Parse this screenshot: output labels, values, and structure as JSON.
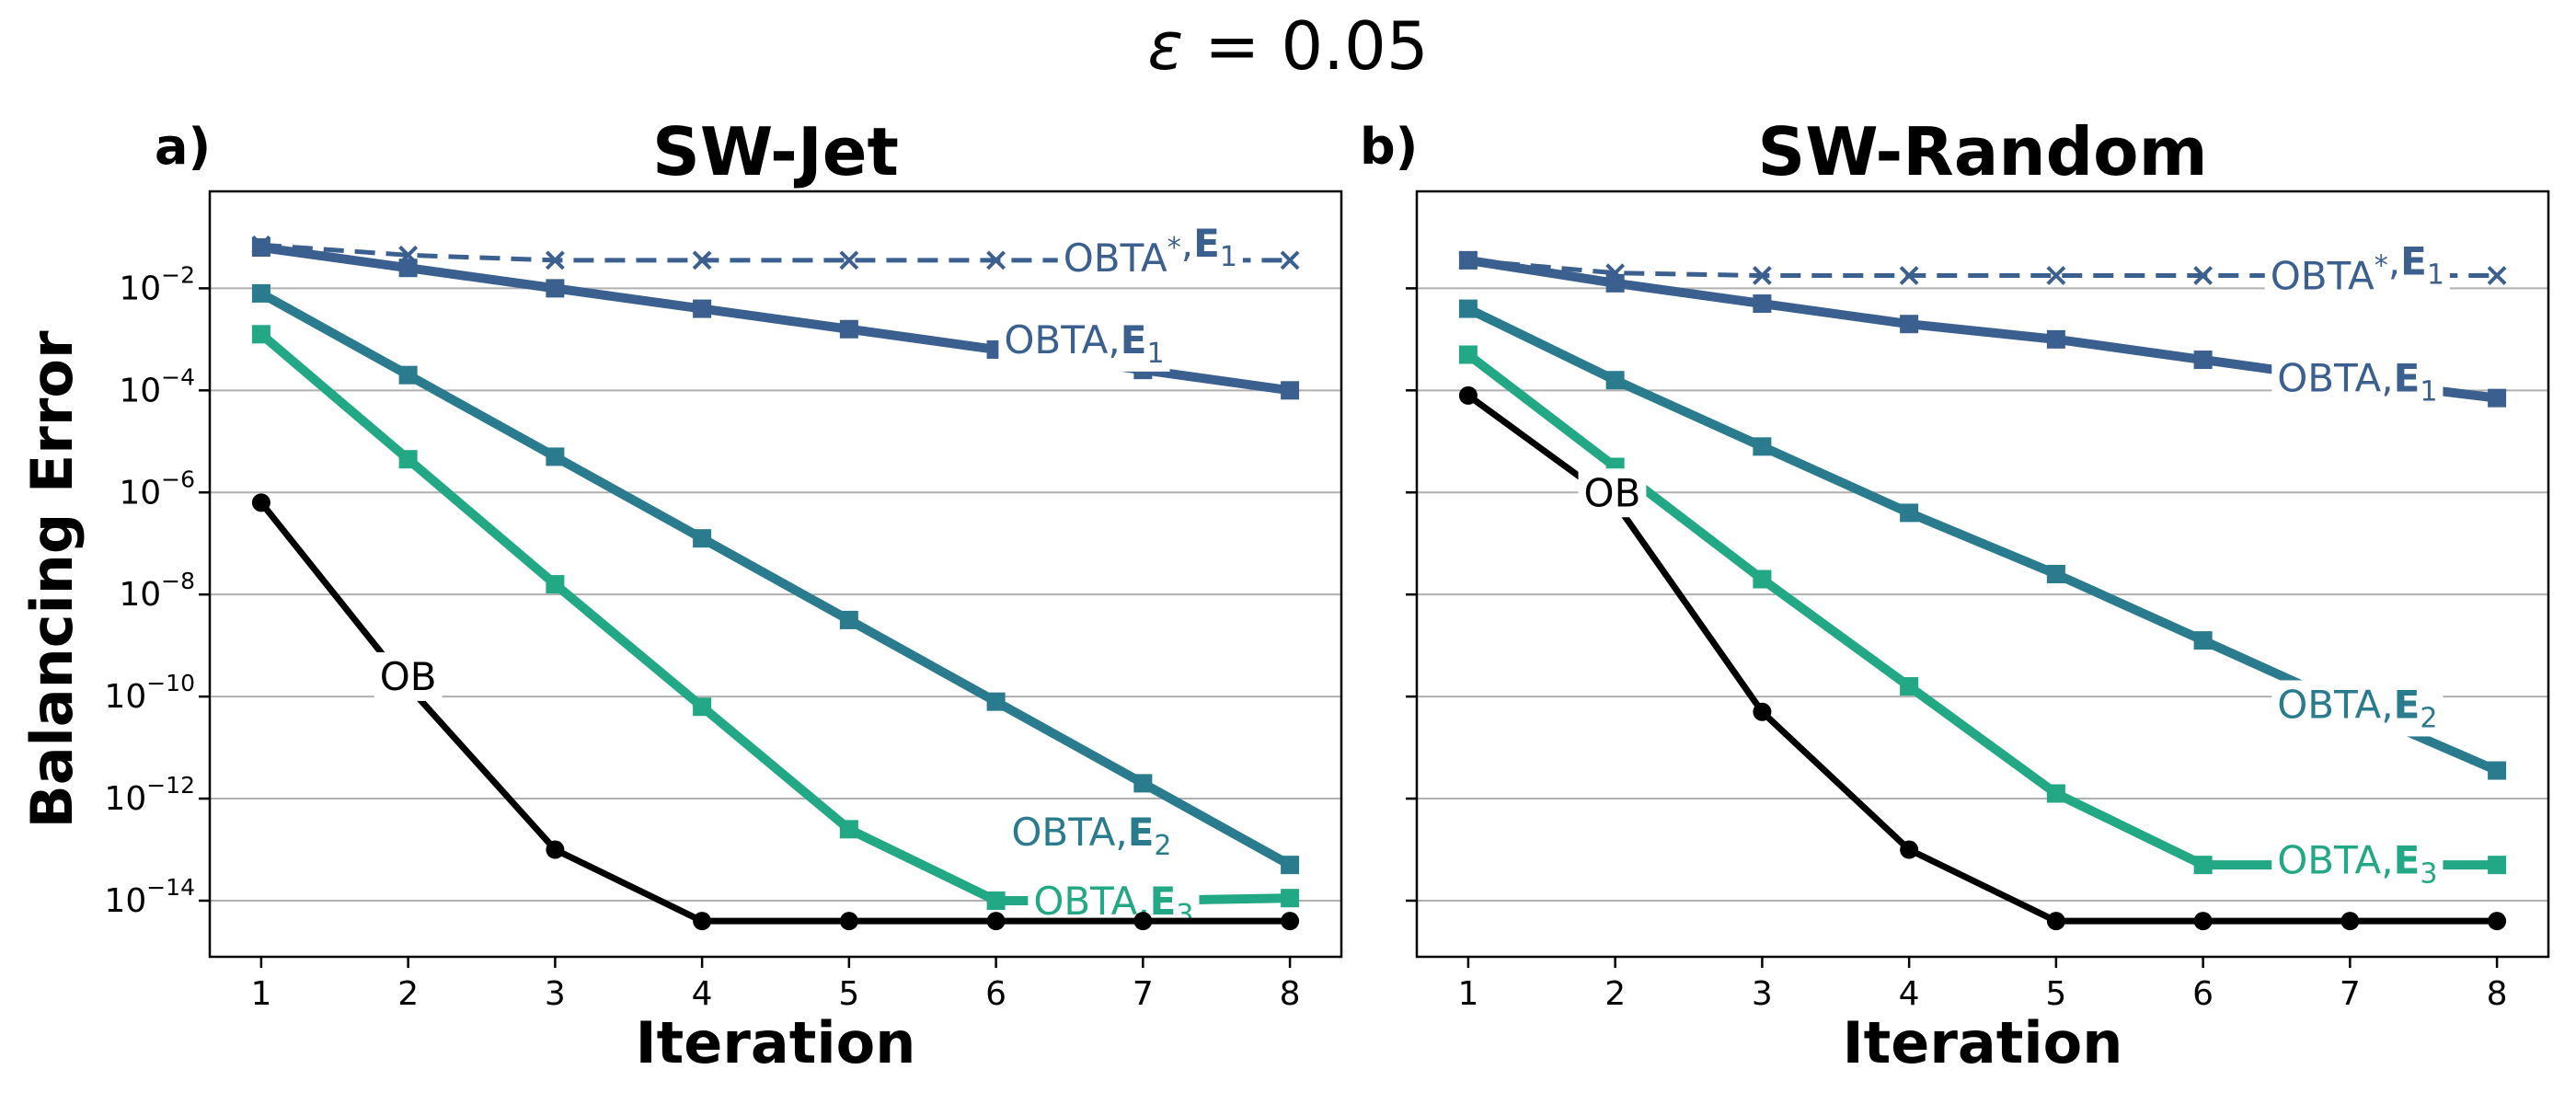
{
  "figure": {
    "title_symbol": "ε",
    "title_rest": " = 0.05"
  },
  "chart_data": [
    {
      "type": "line",
      "panel_label": "a)",
      "title": "SW-Jet",
      "xlabel": "Iteration",
      "ylabel": "Balancing Error",
      "yscale": "log",
      "xlim": [
        0.65,
        8.35
      ],
      "ylim_log10": [
        -15.1,
        -0.1
      ],
      "x_ticks": [
        1,
        2,
        3,
        4,
        5,
        6,
        7,
        8
      ],
      "y_ticks_log10": [
        -2,
        -4,
        -6,
        -8,
        -10,
        -12,
        -14
      ],
      "grid": "horizontal",
      "x": [
        1,
        2,
        3,
        4,
        5,
        6,
        7,
        8
      ],
      "series": [
        {
          "label_main": "OBTA",
          "label_sup": "*",
          "label_bold": "E",
          "label_sub": "1",
          "color": "#3b5f8f",
          "marker": "x",
          "linestyle": "dashed",
          "log10_values": [
            -1.15,
            -1.35,
            -1.45,
            -1.45,
            -1.45,
            -1.45,
            -1.45,
            -1.45
          ]
        },
        {
          "label_main": "OBTA",
          "label_sup": "",
          "label_bold": "E",
          "label_sub": "1",
          "color": "#3b5f8f",
          "marker": "square",
          "linestyle": "solid",
          "log10_values": [
            -1.2,
            -1.6,
            -2.0,
            -2.4,
            -2.8,
            -3.2,
            -3.6,
            -4.0
          ]
        },
        {
          "label_main": "OBTA",
          "label_sup": "",
          "label_bold": "E",
          "label_sub": "2",
          "color": "#2b7b8e",
          "marker": "square",
          "linestyle": "solid",
          "log10_values": [
            -2.1,
            -3.7,
            -5.3,
            -6.9,
            -8.5,
            -10.1,
            -11.7,
            -13.3
          ]
        },
        {
          "label_main": "OBTA",
          "label_sup": "",
          "label_bold": "E",
          "label_sub": "3",
          "color": "#22a884",
          "marker": "square",
          "linestyle": "solid",
          "log10_values": [
            -2.9,
            -5.35,
            -7.8,
            -10.2,
            -12.6,
            -14.0,
            -14.0,
            -13.95
          ]
        },
        {
          "label_main": "OB",
          "label_sup": "",
          "label_bold": "",
          "label_sub": "",
          "color": "#000000",
          "marker": "circle",
          "linestyle": "solid",
          "log10_values": [
            -6.2,
            -9.8,
            -13.0,
            -14.4,
            -14.4,
            -14.4,
            -14.4,
            -14.4
          ]
        }
      ]
    },
    {
      "type": "line",
      "panel_label": "b)",
      "title": "SW-Random",
      "xlabel": "Iteration",
      "ylabel": "",
      "yscale": "log",
      "xlim": [
        0.65,
        8.35
      ],
      "ylim_log10": [
        -15.1,
        -0.1
      ],
      "x_ticks": [
        1,
        2,
        3,
        4,
        5,
        6,
        7,
        8
      ],
      "y_ticks_log10": [
        -2,
        -4,
        -6,
        -8,
        -10,
        -12,
        -14
      ],
      "grid": "horizontal",
      "x": [
        1,
        2,
        3,
        4,
        5,
        6,
        7,
        8
      ],
      "series": [
        {
          "label_main": "OBTA",
          "label_sup": "*",
          "label_bold": "E",
          "label_sub": "1",
          "color": "#3b5f8f",
          "marker": "x",
          "linestyle": "dashed",
          "log10_values": [
            -1.45,
            -1.7,
            -1.75,
            -1.75,
            -1.75,
            -1.75,
            -1.75,
            -1.75
          ]
        },
        {
          "label_main": "OBTA",
          "label_sup": "",
          "label_bold": "E",
          "label_sub": "1",
          "color": "#3b5f8f",
          "marker": "square",
          "linestyle": "solid",
          "log10_values": [
            -1.45,
            -1.9,
            -2.3,
            -2.7,
            -3.0,
            -3.4,
            -3.8,
            -4.15
          ]
        },
        {
          "label_main": "OBTA",
          "label_sup": "",
          "label_bold": "E",
          "label_sub": "2",
          "color": "#2b7b8e",
          "marker": "square",
          "linestyle": "solid",
          "log10_values": [
            -2.4,
            -3.8,
            -5.1,
            -6.4,
            -7.6,
            -8.9,
            -10.2,
            -11.45
          ]
        },
        {
          "label_main": "OBTA",
          "label_sup": "",
          "label_bold": "E",
          "label_sub": "3",
          "color": "#22a884",
          "marker": "square",
          "linestyle": "solid",
          "log10_values": [
            -3.3,
            -5.5,
            -7.7,
            -9.8,
            -11.9,
            -13.3,
            -13.3,
            -13.3
          ]
        },
        {
          "label_main": "OB",
          "label_sup": "",
          "label_bold": "",
          "label_sub": "",
          "color": "#000000",
          "marker": "circle",
          "linestyle": "solid",
          "log10_values": [
            -4.1,
            -6.2,
            -10.3,
            -13.0,
            -14.4,
            -14.4,
            -14.4,
            -14.4
          ]
        }
      ]
    }
  ]
}
